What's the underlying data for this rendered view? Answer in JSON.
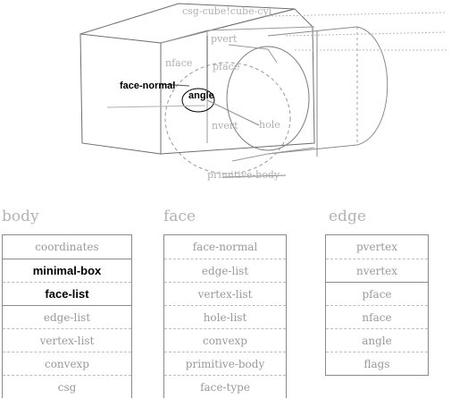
{
  "diagram": {
    "labels": {
      "top": "csg-cube!cube-cyl",
      "pvert": "pvert",
      "nface": "nface",
      "pface": "pface",
      "face_normal": "face-normal",
      "angle": "angle",
      "nvert": "nvert",
      "hole": "hole",
      "primitive_body": "primitive-body"
    }
  },
  "tables": {
    "body": {
      "title": "body",
      "rows": [
        "coordinates",
        "minimal-box",
        "face-list",
        "edge-list",
        "vertex-list",
        "convexp",
        "csg"
      ]
    },
    "face": {
      "title": "face",
      "rows": [
        "face-normal",
        "edge-list",
        "vertex-list",
        "hole-list",
        "convexp",
        "primitive-body",
        "face-type"
      ]
    },
    "edge": {
      "title": "edge",
      "rows": [
        "pvertex",
        "nvertex",
        "pface",
        "nface",
        "angle",
        "flags"
      ]
    }
  }
}
